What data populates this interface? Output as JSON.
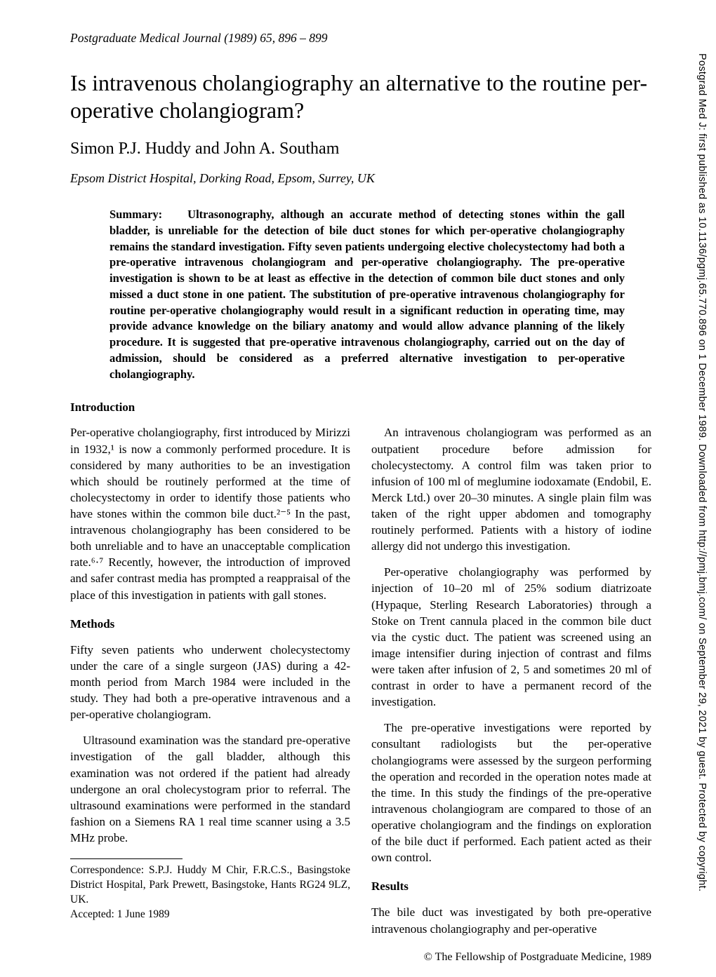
{
  "running_head": "Postgraduate Medical Journal (1989) 65, 896 – 899",
  "title": "Is intravenous cholangiography an alternative to the routine per-operative cholangiogram?",
  "authors": "Simon P.J. Huddy and John A. Southam",
  "affiliation": "Epsom District Hospital, Dorking Road, Epsom, Surrey, UK",
  "summary_label": "Summary:",
  "summary_text": "Ultrasonography, although an accurate method of detecting stones within the gall bladder, is unreliable for the detection of bile duct stones for which per-operative cholangiography remains the standard investigation. Fifty seven patients undergoing elective cholecystectomy had both a pre-operative intravenous cholangiogram and per-operative cholangiography. The pre-operative investigation is shown to be at least as effective in the detection of common bile duct stones and only missed a duct stone in one patient. The substitution of pre-operative intravenous cholangiography for routine per-operative cholangiography would result in a significant reduction in operating time, may provide advance knowledge on the biliary anatomy and would allow advance planning of the likely procedure. It is suggested that pre-operative intravenous cholangiography, carried out on the day of admission, should be considered as a preferred alternative investigation to per-operative cholangiography.",
  "introduction_heading": "Introduction",
  "intro_para": "Per-operative cholangiography, first introduced by Mirizzi in 1932,¹ is now a commonly performed procedure. It is considered by many authorities to be an investigation which should be routinely performed at the time of cholecystectomy in order to identify those patients who have stones within the common bile duct.²⁻⁵ In the past, intravenous cholangiography has been considered to be both unreliable and to have an unacceptable complication rate.⁶·⁷ Recently, however, the introduction of improved and safer contrast media has prompted a reappraisal of the place of this investigation in patients with gall stones.",
  "methods_heading": "Methods",
  "methods_p1": "Fifty seven patients who underwent cholecystectomy under the care of a single surgeon (JAS) during a 42-month period from March 1984 were included in the study. They had both a pre-operative intravenous and a per-operative cholangiogram.",
  "methods_p2": "Ultrasound examination was the standard pre-operative investigation of the gall bladder, although this examination was not ordered if the patient had already undergone an oral cholecystogram prior to referral. The ultrasound examinations were performed in the standard fashion on a Siemens RA 1 real time scanner using a 3.5 MHz probe.",
  "right_p1": "An intravenous cholangiogram was performed as an outpatient procedure before admission for cholecystectomy. A control film was taken prior to infusion of 100 ml of meglumine iodoxamate (Endobil, E. Merck Ltd.) over 20–30 minutes. A single plain film was taken of the right upper abdomen and tomography routinely performed. Patients with a history of iodine allergy did not undergo this investigation.",
  "right_p2": "Per-operative cholangiography was performed by injection of 10–20 ml of 25% sodium diatrizoate (Hypaque, Sterling Research Laboratories) through a Stoke on Trent cannula placed in the common bile duct via the cystic duct. The patient was screened using an image intensifier during injection of contrast and films were taken after infusion of 2, 5 and sometimes 20 ml of contrast in order to have a permanent record of the investigation.",
  "right_p3": "The pre-operative investigations were reported by consultant radiologists but the per-operative cholangiograms were assessed by the surgeon performing the operation and recorded in the operation notes made at the time. In this study the findings of the pre-operative intravenous cholangiogram are compared to those of an operative cholangiogram and the findings on exploration of the bile duct if performed. Each patient acted as their own control.",
  "results_heading": "Results",
  "results_p1": "The bile duct was investigated by both pre-operative intravenous cholangiography and per-operative",
  "correspondence": "Correspondence: S.P.J. Huddy M Chir, F.R.C.S., Basingstoke District Hospital, Park Prewett, Basingstoke, Hants RG24 9LZ, UK.",
  "accepted": "Accepted: 1 June 1989",
  "copyright_line": "© The Fellowship of Postgraduate Medicine, 1989",
  "side_text": "Postgrad Med J: first published as 10.1136/pgmj.65.770.896 on 1 December 1989. Downloaded from http://pmj.bmj.com/ on September 29, 2021 by guest. Protected by copyright."
}
